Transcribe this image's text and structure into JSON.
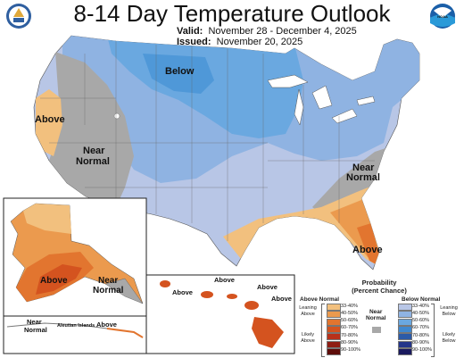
{
  "header": {
    "title": "8-14 Day Temperature Outlook",
    "valid_label": "Valid:",
    "valid_value": "November 28 - December 4, 2025",
    "issued_label": "Issued:",
    "issued_value": "November 20, 2025",
    "noaa_logo_text": "NOAA"
  },
  "map_labels": {
    "below": "Below",
    "above_west": "Above",
    "near_normal_west_1": "Near",
    "near_normal_west_2": "Normal",
    "near_normal_east_1": "Near",
    "near_normal_east_2": "Normal",
    "above_southeast": "Above",
    "alaska_above": "Above",
    "alaska_near_1": "Near",
    "alaska_near_2": "Normal",
    "aleutian_near_1": "Near",
    "aleutian_near_2": "Normal",
    "aleutian_name": "Aleutian Islands",
    "aleutian_above": "Above",
    "hawaii_above_1": "Above",
    "hawaii_above_2": "Above",
    "hawaii_above_3": "Above",
    "hawaii_above_4": "Above"
  },
  "legend": {
    "title_1": "Probability",
    "title_2": "(Percent Chance)",
    "above_header": "Above Normal",
    "below_header": "Below Normal",
    "near_label_1": "Near",
    "near_label_2": "Normal",
    "leaning_above_1": "Leaning",
    "leaning_above_2": "Above",
    "likely_above_1": "Likely",
    "likely_above_2": "Above",
    "leaning_below_1": "Leaning",
    "leaning_below_2": "Below",
    "likely_below_1": "Likely",
    "likely_below_2": "Below",
    "above": [
      {
        "range": "33-40%",
        "color": "#f2c07e"
      },
      {
        "range": "40-50%",
        "color": "#eb9a4e"
      },
      {
        "range": "50-60%",
        "color": "#e2752f"
      },
      {
        "range": "60-70%",
        "color": "#d4531f"
      },
      {
        "range": "70-80%",
        "color": "#b9311a"
      },
      {
        "range": "80-90%",
        "color": "#8f1d13"
      },
      {
        "range": "90-100%",
        "color": "#5e0d0a"
      }
    ],
    "below": [
      {
        "range": "33-40%",
        "color": "#b8c6e6"
      },
      {
        "range": "40-50%",
        "color": "#8fb3e2"
      },
      {
        "range": "50-60%",
        "color": "#6aa8e0"
      },
      {
        "range": "60-70%",
        "color": "#3f88cf"
      },
      {
        "range": "70-80%",
        "color": "#2c5ba8"
      },
      {
        "range": "80-90%",
        "color": "#24358a"
      },
      {
        "range": "90-100%",
        "color": "#1a1a5e"
      }
    ],
    "near_color": "#a8a8a8"
  }
}
